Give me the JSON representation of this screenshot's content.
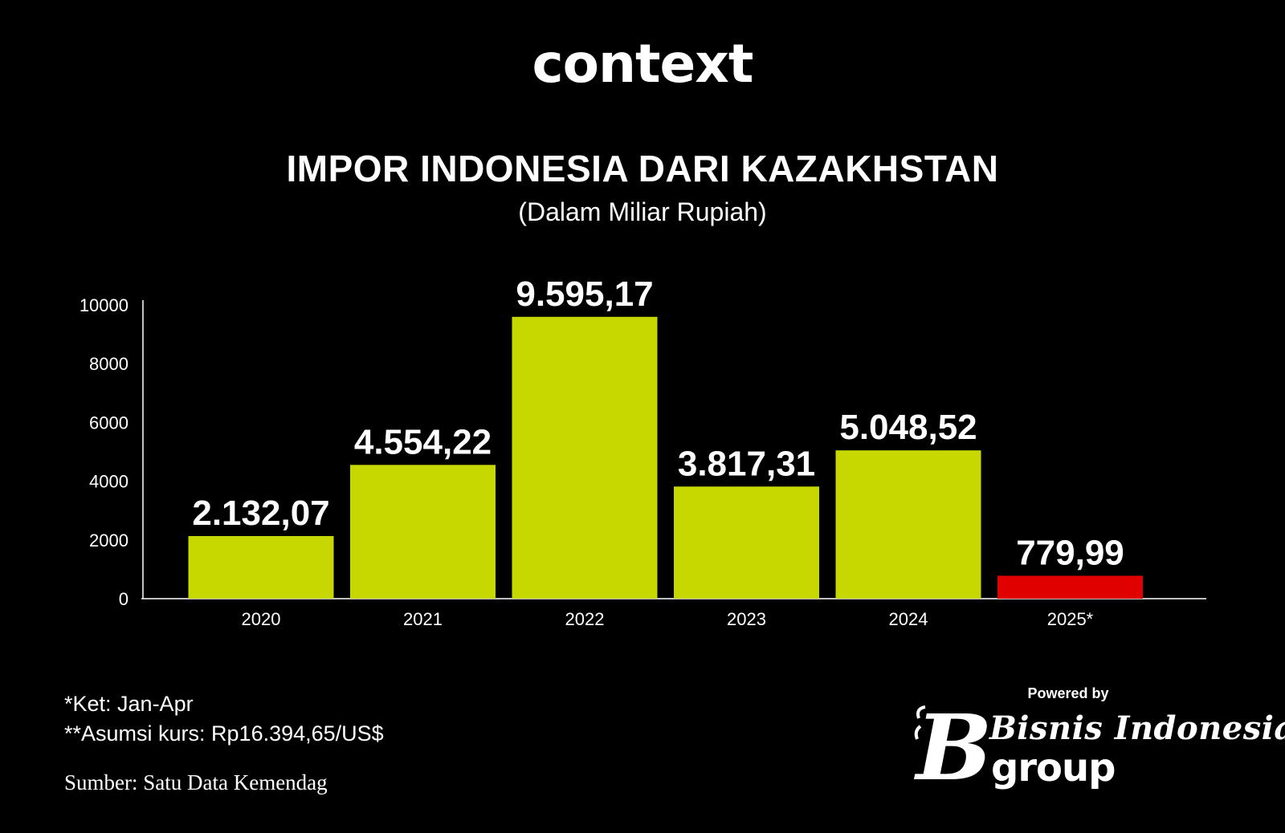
{
  "brand": "context",
  "notes": {
    "ket": "*Ket: Jan-Apr",
    "kurs": "**Asumsi kurs: Rp16.394,65/US$",
    "source": "Sumber: Satu Data Kemendag"
  },
  "footer": {
    "powered_by": "Powered by",
    "logo_line1": "Bisnis Indonesia",
    "logo_line2": "group",
    "logo_icon": "bisnis-indonesia-b-logo-icon"
  },
  "colors": {
    "background": "#000000",
    "bar": "#c6d800",
    "highlight_bar": "#e00000",
    "text": "#ffffff"
  },
  "chart_data": {
    "type": "bar",
    "title": "IMPOR INDONESIA DARI KAZAKHSTAN",
    "subtitle": "(Dalam Miliar Rupiah)",
    "categories": [
      "2020",
      "2021",
      "2022",
      "2023",
      "2024",
      "2025*"
    ],
    "values": [
      2132.07,
      4554.22,
      9595.17,
      3817.31,
      5048.52,
      779.99
    ],
    "value_labels": [
      "2.132,07",
      "4.554,22",
      "9.595,17",
      "3.817,31",
      "5.048,52",
      "779,99"
    ],
    "highlight_index": 5,
    "yticks": [
      0,
      2000,
      4000,
      6000,
      8000,
      10000
    ],
    "ylim": [
      0,
      10000
    ],
    "xlabel": "",
    "ylabel": "",
    "grid": false,
    "legend": "none"
  }
}
